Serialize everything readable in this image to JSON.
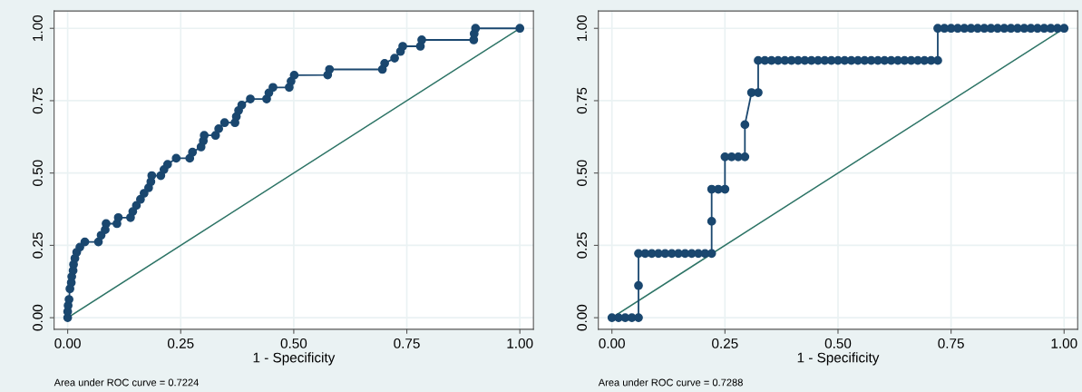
{
  "chart_data": [
    {
      "type": "line",
      "xlabel": "1 - Specificity",
      "annotations": [
        "Area under ROC curve = 0.7224"
      ],
      "xlim": [
        -0.03,
        1.03
      ],
      "ylim": [
        -0.04,
        1.06
      ],
      "xticks": [
        {
          "value": 0,
          "label": "0.00"
        },
        {
          "value": 0.25,
          "label": "0.25"
        },
        {
          "value": 0.5,
          "label": "0.50"
        },
        {
          "value": 0.75,
          "label": "0.75"
        },
        {
          "value": 1,
          "label": "1.00"
        }
      ],
      "yticks": [
        {
          "value": 0,
          "label": "0.00"
        },
        {
          "value": 0.25,
          "label": "0.25"
        },
        {
          "value": 0.5,
          "label": "0.50"
        },
        {
          "value": 0.75,
          "label": "0.75"
        },
        {
          "value": 1,
          "label": "1.00"
        }
      ],
      "grid": true,
      "series": [
        {
          "color": "#1a476f",
          "marker": "circle",
          "x": [
            0,
            0,
            0.001,
            0.003,
            0.005,
            0.008,
            0.009,
            0.012,
            0.013,
            0.016,
            0.02,
            0.027,
            0.038,
            0.068,
            0.074,
            0.083,
            0.085,
            0.109,
            0.112,
            0.139,
            0.144,
            0.152,
            0.161,
            0.169,
            0.179,
            0.184,
            0.186,
            0.206,
            0.213,
            0.221,
            0.24,
            0.27,
            0.276,
            0.295,
            0.3,
            0.302,
            0.327,
            0.334,
            0.347,
            0.37,
            0.373,
            0.378,
            0.385,
            0.404,
            0.44,
            0.445,
            0.454,
            0.49,
            0.494,
            0.501,
            0.575,
            0.579,
            0.696,
            0.701,
            0.723,
            0.736,
            0.741,
            0.78,
            0.783,
            0.898,
            0.899,
            0.902,
            1.0
          ],
          "values": [
            0,
            0.021,
            0.042,
            0.063,
            0.1,
            0.121,
            0.142,
            0.163,
            0.184,
            0.205,
            0.226,
            0.244,
            0.262,
            0.262,
            0.285,
            0.304,
            0.325,
            0.325,
            0.346,
            0.346,
            0.367,
            0.388,
            0.409,
            0.43,
            0.449,
            0.47,
            0.491,
            0.491,
            0.512,
            0.53,
            0.551,
            0.551,
            0.572,
            0.59,
            0.611,
            0.63,
            0.63,
            0.653,
            0.674,
            0.674,
            0.695,
            0.716,
            0.735,
            0.756,
            0.756,
            0.777,
            0.796,
            0.796,
            0.817,
            0.838,
            0.839,
            0.858,
            0.858,
            0.879,
            0.897,
            0.92,
            0.938,
            0.938,
            0.96,
            0.96,
            0.981,
            1.0,
            1.0
          ]
        },
        {
          "color": "#2d7466",
          "marker": "none",
          "x": [
            0,
            1
          ],
          "values": [
            0,
            1
          ]
        }
      ]
    },
    {
      "type": "line",
      "xlabel": "1 - Specificity",
      "annotations": [
        "Area under ROC curve = 0.7288"
      ],
      "xlim": [
        -0.03,
        1.03
      ],
      "ylim": [
        -0.04,
        1.06
      ],
      "xticks": [
        {
          "value": 0,
          "label": "0.00"
        },
        {
          "value": 0.25,
          "label": "0.25"
        },
        {
          "value": 0.5,
          "label": "0.50"
        },
        {
          "value": 0.75,
          "label": "0.75"
        },
        {
          "value": 1,
          "label": "1.00"
        }
      ],
      "yticks": [
        {
          "value": 0,
          "label": "0.00"
        },
        {
          "value": 0.25,
          "label": "0.25"
        },
        {
          "value": 0.5,
          "label": "0.50"
        },
        {
          "value": 0.75,
          "label": "0.75"
        },
        {
          "value": 1,
          "label": "1.00"
        }
      ],
      "grid": true,
      "series": [
        {
          "color": "#1a476f",
          "marker": "circle",
          "x": [
            0,
            0.0147,
            0.0294,
            0.0441,
            0.0588,
            0.0588,
            0.0588,
            0.0735,
            0.0882,
            0.1029,
            0.1176,
            0.1324,
            0.1471,
            0.1618,
            0.1765,
            0.1912,
            0.2059,
            0.2206,
            0.2206,
            0.2206,
            0.2353,
            0.25,
            0.25,
            0.2647,
            0.2794,
            0.2941,
            0.2941,
            0.3088,
            0.3235,
            0.3235,
            0.3382,
            0.3529,
            0.3676,
            0.3824,
            0.3971,
            0.4118,
            0.4265,
            0.4412,
            0.4559,
            0.4706,
            0.4853,
            0.5,
            0.5147,
            0.5294,
            0.5441,
            0.5588,
            0.5735,
            0.5882,
            0.6029,
            0.6176,
            0.6324,
            0.6471,
            0.6618,
            0.6765,
            0.6912,
            0.7059,
            0.7206,
            0.7206,
            0.7353,
            0.75,
            0.7647,
            0.7794,
            0.7941,
            0.8088,
            0.8235,
            0.8382,
            0.8529,
            0.8676,
            0.8824,
            0.8971,
            0.9118,
            0.9265,
            0.9412,
            0.9559,
            0.9706,
            0.9853,
            1.0
          ],
          "values": [
            0,
            0,
            0,
            0,
            0,
            0.111,
            0.222,
            0.222,
            0.222,
            0.222,
            0.222,
            0.222,
            0.222,
            0.222,
            0.222,
            0.222,
            0.222,
            0.222,
            0.333,
            0.444,
            0.444,
            0.444,
            0.556,
            0.556,
            0.556,
            0.556,
            0.667,
            0.778,
            0.778,
            0.889,
            0.889,
            0.889,
            0.889,
            0.889,
            0.889,
            0.889,
            0.889,
            0.889,
            0.889,
            0.889,
            0.889,
            0.889,
            0.889,
            0.889,
            0.889,
            0.889,
            0.889,
            0.889,
            0.889,
            0.889,
            0.889,
            0.889,
            0.889,
            0.889,
            0.889,
            0.889,
            0.889,
            1.0,
            1.0,
            1.0,
            1.0,
            1.0,
            1.0,
            1.0,
            1.0,
            1.0,
            1.0,
            1.0,
            1.0,
            1.0,
            1.0,
            1.0,
            1.0,
            1.0,
            1.0,
            1.0,
            1.0
          ]
        },
        {
          "color": "#2d7466",
          "marker": "none",
          "x": [
            0,
            1
          ],
          "values": [
            0,
            1
          ]
        }
      ]
    }
  ]
}
